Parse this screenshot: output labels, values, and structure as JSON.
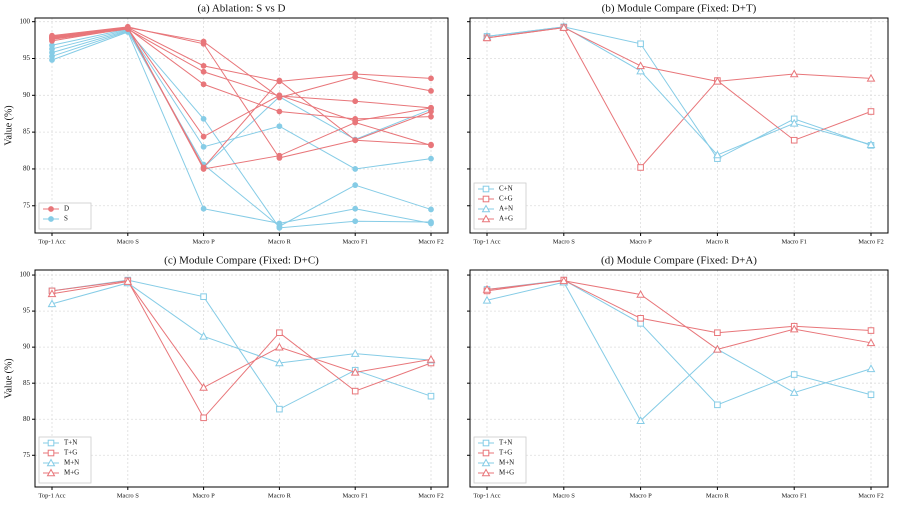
{
  "chart_data": [
    {
      "type": "line",
      "title": "(a) Ablation: S vs D",
      "ylabel": "Value (%)",
      "categories": [
        "Top-1 Acc",
        "Macro S",
        "Macro P",
        "Macro R",
        "Macro F1",
        "Macro F2"
      ],
      "ylim": [
        71.3,
        100.5
      ],
      "yticks": [
        75,
        80,
        85,
        90,
        95,
        100
      ],
      "show_ytick_labels": true,
      "grid": true,
      "legend": "lower left",
      "series": [
        {
          "name": "S",
          "color": "#86cce6",
          "marker": "circle",
          "values": [
            94.8,
            98.6,
            74.6,
            72.6,
            74.6,
            72.6
          ]
        },
        {
          "name": "S",
          "color": "#86cce6",
          "marker": "circle",
          "values": [
            95.3,
            98.7,
            80.6,
            72.2,
            77.8,
            74.5
          ]
        },
        {
          "name": "S",
          "color": "#86cce6",
          "marker": "circle",
          "values": [
            95.8,
            98.8,
            86.8,
            72.0,
            72.9,
            72.8
          ]
        },
        {
          "name": "S",
          "color": "#86cce6",
          "marker": "circle",
          "values": [
            96.3,
            98.9,
            83.0,
            85.8,
            80.0,
            81.4
          ]
        },
        {
          "name": "S",
          "color": "#86cce6",
          "marker": "circle",
          "values": [
            96.8,
            99.0,
            80.2,
            89.8,
            84.0,
            88.1
          ]
        },
        {
          "name": "D",
          "color": "#e8767a",
          "marker": "circle",
          "values": [
            97.8,
            99.2,
            80.2,
            92.0,
            83.9,
            87.8
          ]
        },
        {
          "name": "D",
          "color": "#e8767a",
          "marker": "circle",
          "values": [
            97.8,
            99.2,
            94.0,
            91.9,
            92.9,
            92.3
          ]
        },
        {
          "name": "D",
          "color": "#e8767a",
          "marker": "circle",
          "values": [
            97.4,
            99.1,
            84.4,
            90.0,
            86.5,
            88.3
          ]
        },
        {
          "name": "D",
          "color": "#e8767a",
          "marker": "circle",
          "values": [
            98.0,
            99.2,
            97.3,
            89.7,
            92.5,
            90.6
          ]
        },
        {
          "name": "D",
          "color": "#e8767a",
          "marker": "circle",
          "values": [
            98.1,
            99.3,
            97.0,
            81.5,
            83.9,
            83.3
          ]
        },
        {
          "name": "D",
          "color": "#e8767a",
          "marker": "circle",
          "values": [
            97.6,
            99.0,
            93.2,
            89.9,
            89.2,
            88.3
          ]
        },
        {
          "name": "D",
          "color": "#e8767a",
          "marker": "circle",
          "values": [
            97.7,
            99.1,
            91.5,
            87.8,
            86.8,
            87.1
          ]
        },
        {
          "name": "D",
          "color": "#e8767a",
          "marker": "circle",
          "values": [
            97.9,
            99.2,
            80.0,
            81.8,
            86.3,
            83.2
          ]
        }
      ],
      "legend_order": [
        "D",
        "S"
      ]
    },
    {
      "type": "line",
      "title": "(b) Module Compare (Fixed: D+T)",
      "categories": [
        "Top-1 Acc",
        "Macro S",
        "Macro P",
        "Macro R",
        "Macro F1",
        "Macro F2"
      ],
      "ylim": [
        71.3,
        100.5
      ],
      "yticks": [
        75,
        80,
        85,
        90,
        95,
        100
      ],
      "show_ytick_labels": false,
      "grid": true,
      "legend": "lower left",
      "series": [
        {
          "name": "C+N",
          "color": "#86cce6",
          "marker": "square",
          "values": [
            98.0,
            99.3,
            97.0,
            81.4,
            86.8,
            83.2
          ]
        },
        {
          "name": "C+G",
          "color": "#e8767a",
          "marker": "square",
          "values": [
            97.8,
            99.2,
            80.2,
            92.0,
            83.9,
            87.8
          ]
        },
        {
          "name": "A+N",
          "color": "#86cce6",
          "marker": "triangle",
          "values": [
            98.0,
            99.3,
            93.3,
            81.9,
            86.2,
            83.3
          ]
        },
        {
          "name": "A+G",
          "color": "#e8767a",
          "marker": "triangle",
          "values": [
            97.8,
            99.2,
            94.0,
            91.9,
            92.9,
            92.3
          ]
        }
      ]
    },
    {
      "type": "line",
      "title": "(c) Module Compare (Fixed: D+C)",
      "ylabel": "Value (%)",
      "categories": [
        "Top-1 Acc",
        "Macro S",
        "Macro P",
        "Macro R",
        "Macro F1",
        "Macro F2"
      ],
      "ylim": [
        70.6,
        100.7
      ],
      "yticks": [
        75,
        80,
        85,
        90,
        95,
        100
      ],
      "show_ytick_labels": true,
      "grid": true,
      "legend": "lower left",
      "series": [
        {
          "name": "T+N",
          "color": "#86cce6",
          "marker": "square",
          "values": [
            97.8,
            99.3,
            97.0,
            81.4,
            86.8,
            83.2
          ]
        },
        {
          "name": "T+G",
          "color": "#e8767a",
          "marker": "square",
          "values": [
            97.8,
            99.2,
            80.2,
            92.0,
            83.9,
            87.8
          ]
        },
        {
          "name": "M+N",
          "color": "#86cce6",
          "marker": "triangle",
          "values": [
            96.0,
            98.9,
            91.5,
            87.8,
            89.1,
            88.2
          ]
        },
        {
          "name": "M+G",
          "color": "#e8767a",
          "marker": "triangle",
          "values": [
            97.4,
            99.1,
            84.4,
            90.0,
            86.5,
            88.3
          ]
        }
      ]
    },
    {
      "type": "line",
      "title": "(d) Module Compare (Fixed: D+A)",
      "categories": [
        "Top-1 Acc",
        "Macro S",
        "Macro P",
        "Macro R",
        "Macro F1",
        "Macro F2"
      ],
      "ylim": [
        70.6,
        100.7
      ],
      "yticks": [
        75,
        80,
        85,
        90,
        95,
        100
      ],
      "show_ytick_labels": false,
      "grid": true,
      "legend": "lower left",
      "series": [
        {
          "name": "T+N",
          "color": "#86cce6",
          "marker": "square",
          "values": [
            98.0,
            99.3,
            93.3,
            82.0,
            86.2,
            83.4
          ]
        },
        {
          "name": "T+G",
          "color": "#e8767a",
          "marker": "square",
          "values": [
            97.8,
            99.3,
            94.0,
            92.0,
            92.9,
            92.3
          ]
        },
        {
          "name": "M+N",
          "color": "#86cce6",
          "marker": "triangle",
          "values": [
            96.5,
            99.0,
            79.8,
            89.7,
            83.7,
            87.0
          ]
        },
        {
          "name": "M+G",
          "color": "#e8767a",
          "marker": "triangle",
          "values": [
            98.0,
            99.2,
            97.3,
            89.7,
            92.5,
            90.6
          ]
        }
      ]
    }
  ]
}
